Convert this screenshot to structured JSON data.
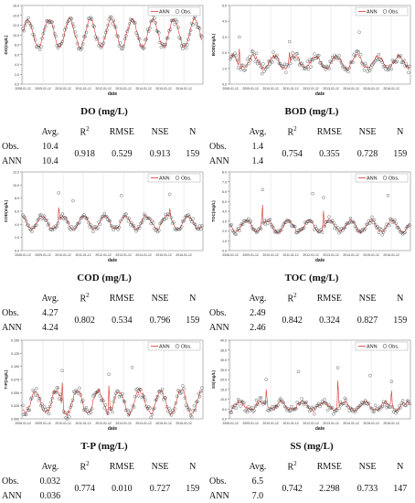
{
  "legend": {
    "ann": "ANN",
    "obs": "Obs."
  },
  "table_headers": {
    "avg": "Avg.",
    "r2": "R",
    "r2_sup": "2",
    "rmse": "RMSE",
    "nse": "NSE",
    "n": "N"
  },
  "chart_data": [
    {
      "type": "line",
      "title": "DO (mg/L)",
      "xlabel": "date",
      "ylabel": "DO(mg/L)",
      "ylim": [
        0,
        16
      ],
      "yticks": [
        "0.0",
        "2.0",
        "4.0",
        "6.0",
        "8.0",
        "10.0",
        "12.0",
        "14.0",
        "16.0"
      ],
      "xticks": [
        "2008-01-12",
        "2009-01-12",
        "2010-01-12",
        "2011-01-12",
        "2012-01-12",
        "2013-01-12",
        "2014-01-12",
        "2015-01-12",
        "2016-01-12"
      ],
      "shape": {
        "mean": 10.4,
        "amp": 2.8,
        "noise": 1.0,
        "spikes": []
      },
      "series": [
        {
          "name": "ANN"
        },
        {
          "name": "Obs."
        }
      ],
      "stats": {
        "obs": {
          "label": "Obs.",
          "avg": "10.4"
        },
        "ann": {
          "label": "ANN",
          "avg": "10.4"
        },
        "r2": "0.918",
        "rmse": "0.529",
        "nse": "0.913",
        "n": "159"
      }
    },
    {
      "type": "line",
      "title": "BOD (mg/L)",
      "xlabel": "date",
      "ylabel": "BOD(mg/L)",
      "ylim": [
        0,
        5
      ],
      "yticks": [
        "0.0",
        "1.0",
        "2.0",
        "3.0",
        "4.0",
        "5.0"
      ],
      "xticks": [
        "2008-01-12",
        "2009-01-12",
        "2010-01-12",
        "2011-01-12",
        "2012-01-12",
        "2013-01-12",
        "2014-01-12",
        "2015-01-12",
        "2016-01-12"
      ],
      "shape": {
        "mean": 1.4,
        "amp": 0.4,
        "noise": 0.35,
        "spikes": [
          [
            0.05,
            3.0
          ],
          [
            0.72,
            3.3
          ],
          [
            0.33,
            2.7
          ]
        ]
      },
      "series": [
        {
          "name": "ANN"
        },
        {
          "name": "Obs."
        }
      ],
      "stats": {
        "obs": {
          "label": "Obs.",
          "avg": "1.4"
        },
        "ann": {
          "label": "ANN",
          "avg": "1.4"
        },
        "r2": "0.754",
        "rmse": "0.355",
        "nse": "0.728",
        "n": "159"
      }
    },
    {
      "type": "line",
      "title": "COD (mg/L)",
      "xlabel": "date",
      "ylabel": "COD(mg/L)",
      "ylim": [
        0,
        12
      ],
      "yticks": [
        "0.0",
        "2.0",
        "4.0",
        "6.0",
        "8.0",
        "10.0",
        "12.0"
      ],
      "xticks": [
        "2008-01-12",
        "2009-01-12",
        "2010-01-12",
        "2011-01-12",
        "2012-01-12",
        "2013-01-12",
        "2014-01-12",
        "2015-01-12",
        "2016-01-12"
      ],
      "shape": {
        "mean": 4.27,
        "amp": 1.0,
        "noise": 0.5,
        "spikes": [
          [
            0.2,
            8.8
          ],
          [
            0.55,
            8.4
          ],
          [
            0.82,
            8.6
          ],
          [
            0.28,
            7.6
          ]
        ]
      },
      "series": [
        {
          "name": "ANN"
        },
        {
          "name": "Obs."
        }
      ],
      "stats": {
        "obs": {
          "label": "Obs.",
          "avg": "4.27"
        },
        "ann": {
          "label": "ANN",
          "avg": "4.24"
        },
        "r2": "0.802",
        "rmse": "0.534",
        "nse": "0.796",
        "n": "159"
      }
    },
    {
      "type": "line",
      "title": "TOC (mg/L)",
      "xlabel": "date",
      "ylabel": "TOC(mg/L)",
      "ylim": [
        0,
        8
      ],
      "yticks": [
        "0.0",
        "1.0",
        "2.0",
        "3.0",
        "4.0",
        "5.0",
        "6.0",
        "7.0",
        "8.0"
      ],
      "xticks": [
        "2008-01-12",
        "2009-01-12",
        "2010-01-12",
        "2011-01-12",
        "2012-01-12",
        "2013-01-12",
        "2014-01-12",
        "2015-01-12",
        "2016-01-12"
      ],
      "shape": {
        "mean": 2.49,
        "amp": 0.6,
        "noise": 0.35,
        "spikes": [
          [
            0.18,
            6.2
          ],
          [
            0.46,
            5.8
          ],
          [
            0.52,
            5.4
          ],
          [
            0.88,
            5.6
          ]
        ]
      },
      "series": [
        {
          "name": "ANN"
        },
        {
          "name": "Obs."
        }
      ],
      "stats": {
        "obs": {
          "label": "Obs.",
          "avg": "2.49"
        },
        "ann": {
          "label": "ANN",
          "avg": "2.46"
        },
        "r2": "0.842",
        "rmse": "0.324",
        "nse": "0.827",
        "n": "159"
      }
    },
    {
      "type": "line",
      "title": "T-P (mg/L)",
      "xlabel": "date",
      "ylabel": "T-P(mg/L)",
      "ylim": [
        0,
        0.15
      ],
      "yticks": [
        "0.000",
        "0.025",
        "0.050",
        "0.075",
        "0.100",
        "0.125",
        "0.150"
      ],
      "xticks": [
        "2008-01-12",
        "2009-01-12",
        "2010-01-12",
        "2011-01-12",
        "2012-01-12",
        "2013-01-12",
        "2014-01-12",
        "2015-01-12",
        "2016-01-12"
      ],
      "shape": {
        "mean": 0.032,
        "amp": 0.022,
        "noise": 0.012,
        "spikes": [
          [
            0.22,
            0.092
          ],
          [
            0.61,
            0.098
          ],
          [
            0.48,
            0.085
          ]
        ]
      },
      "series": [
        {
          "name": "ANN"
        },
        {
          "name": "Obs."
        }
      ],
      "stats": {
        "obs": {
          "label": "Obs.",
          "avg": "0.032"
        },
        "ann": {
          "label": "ANN",
          "avg": "0.036"
        },
        "r2": "0.774",
        "rmse": "0.010",
        "nse": "0.727",
        "n": "159"
      }
    },
    {
      "type": "line",
      "title": "SS (mg/L)",
      "xlabel": "date",
      "ylabel": "SS(mg/L)",
      "ylim": [
        0,
        40
      ],
      "yticks": [
        "0.0",
        "5.0",
        "10.0",
        "15.0",
        "20.0",
        "25.0",
        "30.0",
        "35.0",
        "40.0"
      ],
      "xticks": [
        "2008-01-12",
        "2009-01-12",
        "2010-01-12",
        "2011-01-12",
        "2012-01-12",
        "2013-01-12",
        "2014-01-12",
        "2015-01-12",
        "2016-01-12"
      ],
      "shape": {
        "mean": 6.5,
        "amp": 2.0,
        "noise": 2.5,
        "spikes": [
          [
            0.2,
            20
          ],
          [
            0.38,
            24
          ],
          [
            0.6,
            26
          ],
          [
            0.78,
            22
          ],
          [
            0.9,
            19
          ]
        ]
      },
      "series": [
        {
          "name": "ANN"
        },
        {
          "name": "Obs."
        }
      ],
      "stats": {
        "obs": {
          "label": "Obs.",
          "avg": "6.5"
        },
        "ann": {
          "label": "ANN",
          "avg": "7.0"
        },
        "r2": "0.742",
        "rmse": "2.298",
        "nse": "0.733",
        "n": "147"
      }
    }
  ]
}
